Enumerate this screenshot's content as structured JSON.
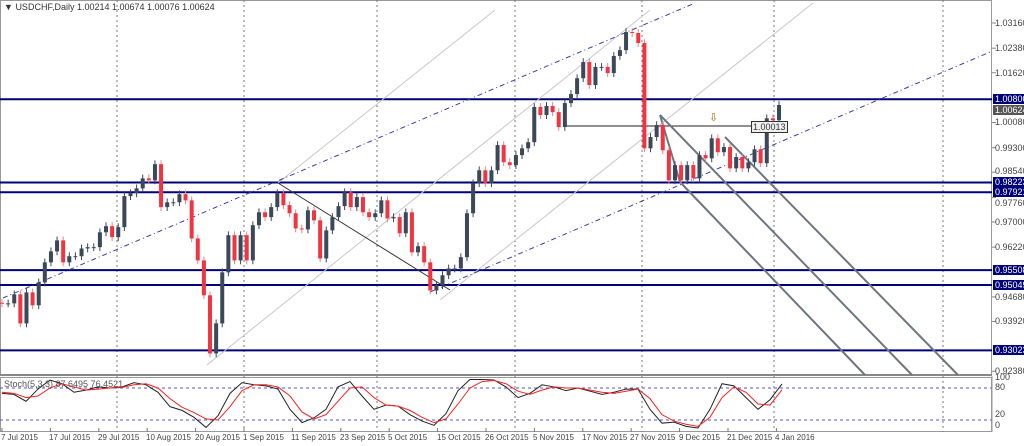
{
  "header": {
    "symbol_title": "USDCHF,Daily",
    "ohlc": "1.00214 1.00674 1.00076 1.00624"
  },
  "colors": {
    "bull": "#3b4858",
    "bear": "#f23340",
    "level": "#00007a",
    "stoch_main": "#222222",
    "stoch_signal": "#ff2020",
    "channel": "#3b3bb0"
  },
  "chart_data": [
    {
      "type": "candlestick",
      "title": "USDCHF,Daily",
      "x_tick_labels": [
        "7 Jul 2015",
        "17 Jul 2015",
        "29 Jul 2015",
        "10 Aug 2015",
        "20 Aug 2015",
        "1 Sep 2015",
        "11 Sep 2015",
        "23 Sep 2015",
        "5 Oct 2015",
        "15 Oct 2015",
        "26 Oct 2015",
        "5 Nov 2015",
        "17 Nov 2015",
        "27 Nov 2015",
        "9 Dec 2015",
        "21 Dec 2015",
        "4 Jan 2016"
      ],
      "y_tick_labels": [
        "1.03160",
        "1.02380",
        "1.01620",
        "1.00080",
        "0.99300",
        "0.98540",
        "0.97760",
        "0.97000",
        "0.96220",
        "0.94680",
        "0.93920",
        "0.92380"
      ],
      "ylim": [
        0.9235,
        1.0385
      ],
      "first_open": 0.945,
      "closes": [
        0.9448,
        0.9448,
        0.9476,
        0.9386,
        0.9482,
        0.9442,
        0.9513,
        0.9575,
        0.9609,
        0.9643,
        0.9575,
        0.9594,
        0.9594,
        0.9618,
        0.9622,
        0.9622,
        0.9668,
        0.9687,
        0.9653,
        0.9684,
        0.978,
        0.9789,
        0.9804,
        0.9835,
        0.9829,
        0.9879,
        0.9746,
        0.9761,
        0.9761,
        0.9786,
        0.9767,
        0.9649,
        0.9581,
        0.9473,
        0.9293,
        0.9386,
        0.9544,
        0.9659,
        0.9581,
        0.9659,
        0.9581,
        0.969,
        0.973,
        0.9715,
        0.9746,
        0.9789,
        0.9752,
        0.9727,
        0.968,
        0.9677,
        0.9736,
        0.9705,
        0.9587,
        0.9674,
        0.9715,
        0.9749,
        0.9792,
        0.9746,
        0.9777,
        0.973,
        0.9715,
        0.9727,
        0.9767,
        0.9711,
        0.9715,
        0.9665,
        0.973,
        0.9606,
        0.9625,
        0.9575,
        0.9488,
        0.9504,
        0.9535,
        0.9556,
        0.9556,
        0.9591,
        0.9727,
        0.982,
        0.986,
        0.982,
        0.986,
        0.9938,
        0.9885,
        0.9876,
        0.9907,
        0.9928,
        0.9947,
        1.0056,
        1.0031,
        1.0059,
        1.004,
        0.9994,
        1.0068,
        1.0096,
        1.0145,
        1.0195,
        1.0124,
        1.018,
        1.018,
        1.0161,
        1.0214,
        1.0232,
        1.0288,
        1.0285,
        1.0254,
        0.9928,
        0.9963,
        1.0,
        0.9922,
        0.9829,
        0.9876,
        0.9829,
        0.9876,
        0.9835,
        0.9907,
        0.9897,
        0.9959,
        0.9916,
        0.9932,
        0.9866,
        0.9901,
        0.9866,
        0.9885,
        0.9925,
        0.9882,
        1.0021,
        1.0015,
        1.0062
      ],
      "horizontal_levels": [
        "1.00800",
        "0.98223",
        "0.97921",
        "0.95508",
        "0.95049",
        "0.93023"
      ],
      "current_price": "1.00624",
      "marker_label": "1.00013",
      "marker_icon": "down-arrow-icon"
    },
    {
      "type": "line",
      "title": "Stoch(5,3,3) 87.6495 76.4521",
      "y_tick_labels": [
        "100",
        "80",
        "20",
        "0"
      ],
      "ylim": [
        0,
        100
      ],
      "levels": [
        80,
        20
      ],
      "series": [
        {
          "values": [
            70,
            68,
            55,
            78,
            95,
            88,
            72,
            76,
            82,
            80,
            82,
            90,
            86,
            72,
            45,
            38,
            25,
            6,
            28,
            70,
            90,
            86,
            84,
            78,
            40,
            15,
            24,
            40,
            82,
            92,
            65,
            40,
            48,
            46,
            30,
            18,
            10,
            32,
            75,
            96,
            96,
            95,
            82,
            62,
            70,
            86,
            82,
            75,
            80,
            74,
            68,
            72,
            78,
            78,
            40,
            14,
            16,
            8,
            5,
            40,
            88,
            84,
            62,
            40,
            58,
            87.6
          ]
        },
        {
          "values": [
            72,
            70,
            62,
            65,
            80,
            88,
            82,
            76,
            78,
            80,
            81,
            86,
            88,
            80,
            60,
            44,
            34,
            22,
            20,
            45,
            75,
            86,
            86,
            82,
            65,
            35,
            22,
            30,
            55,
            80,
            82,
            62,
            48,
            46,
            38,
            25,
            15,
            22,
            50,
            80,
            92,
            94,
            88,
            74,
            68,
            76,
            82,
            80,
            80,
            76,
            72,
            70,
            74,
            78,
            60,
            30,
            18,
            12,
            8,
            25,
            62,
            82,
            72,
            50,
            48,
            76.5
          ]
        }
      ]
    }
  ]
}
